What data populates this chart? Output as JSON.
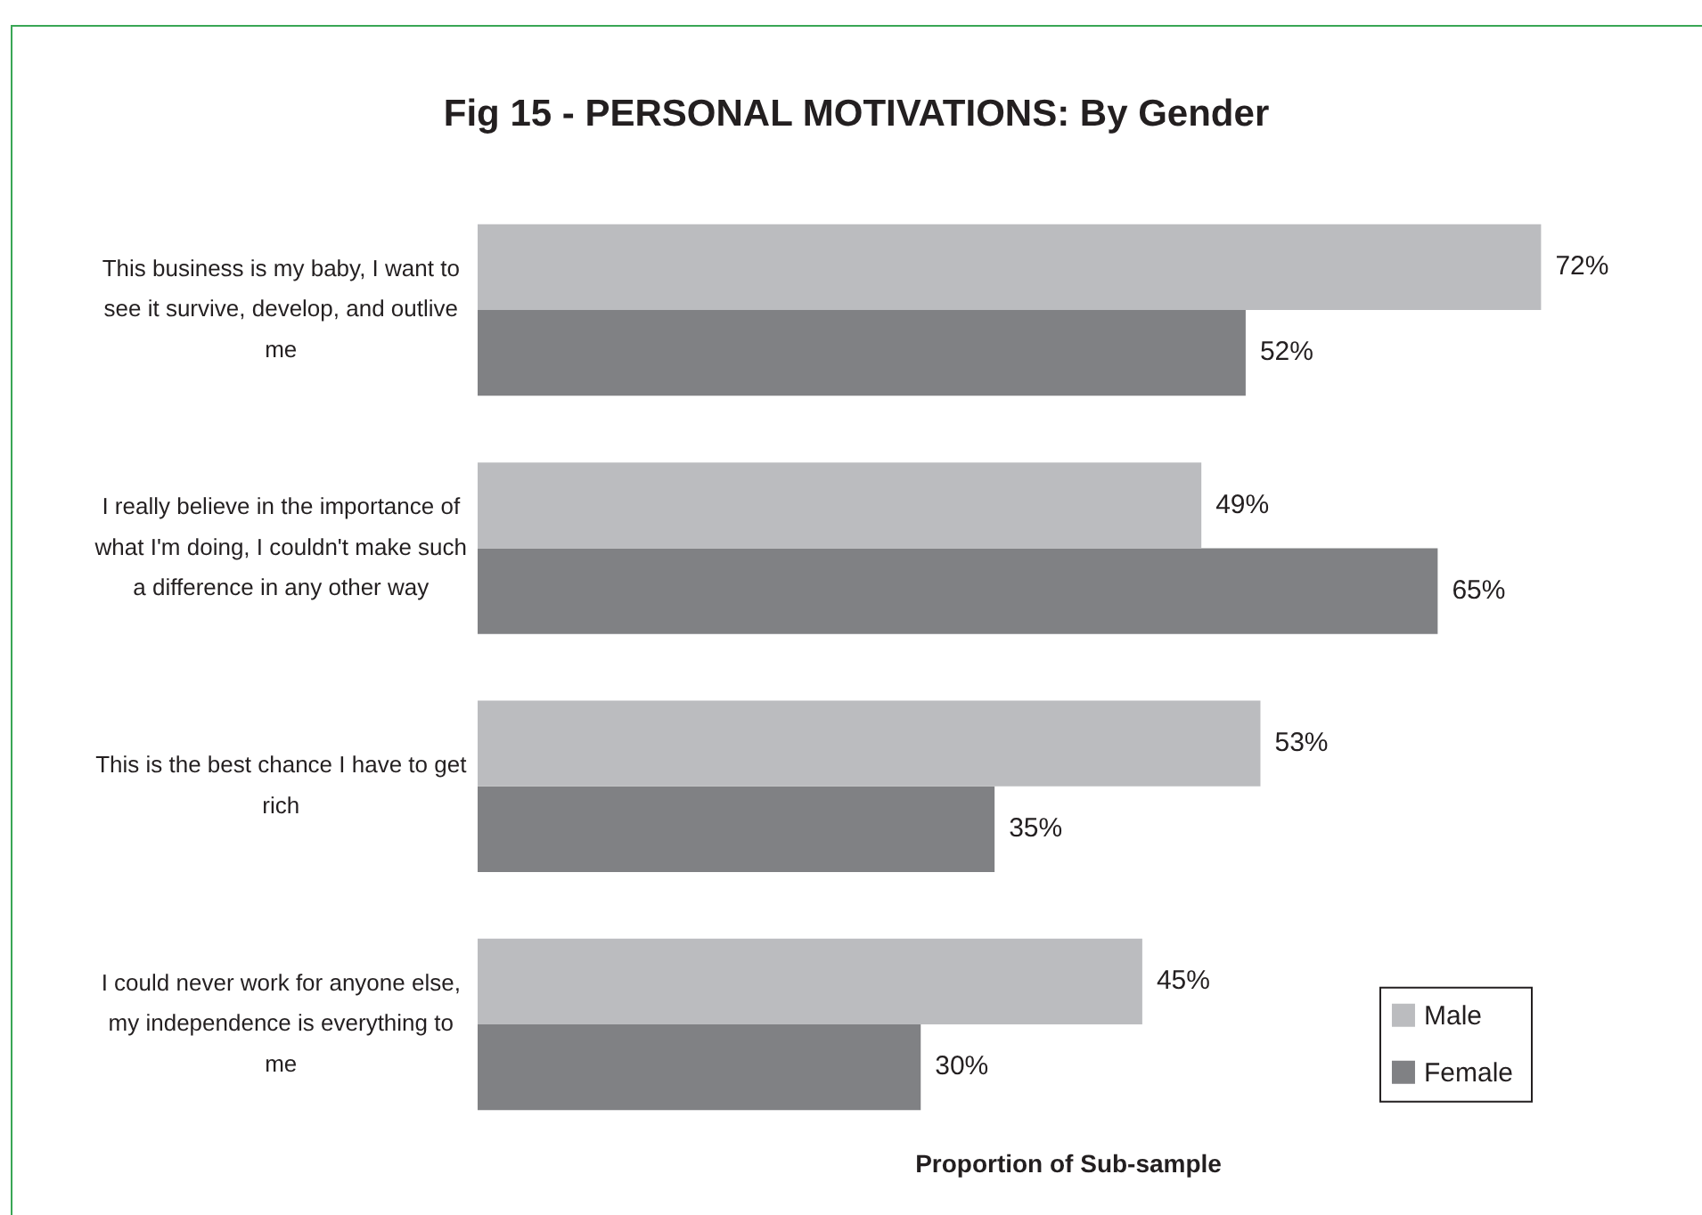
{
  "chart_data": {
    "type": "bar",
    "orientation": "horizontal",
    "title": "Fig 15 - PERSONAL MOTIVATIONS: By Gender",
    "xlabel": "Proportion of Sub-sample",
    "categories": [
      "This business is my baby, I want to see it survive, develop, and outlive me",
      "I really believe in the importance of what I'm doing, I couldn't make such a difference in any other way",
      "This is the best chance I have to get rich",
      "I could never work for anyone else, my independence is everything to me"
    ],
    "series": [
      {
        "name": "Male",
        "color": "#bbbcbf",
        "values": [
          72,
          49,
          53,
          45
        ],
        "value_labels": [
          "72%",
          "49%",
          "53%",
          "45%"
        ]
      },
      {
        "name": "Female",
        "color": "#808184",
        "values": [
          52,
          65,
          35,
          30
        ],
        "value_labels": [
          "52%",
          "65%",
          "35%",
          "30%"
        ]
      }
    ],
    "tick_labels": "y",
    "legend": "bottom right"
  }
}
